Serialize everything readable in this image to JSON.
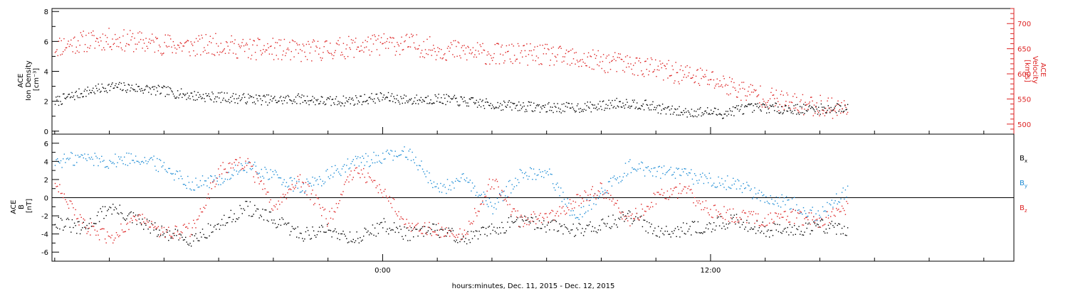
{
  "figure": {
    "xlabel": "hours:minutes, Dec. 11, 2015 - Dec. 12, 2015",
    "x_tick_labels": [
      {
        "t": 0,
        "label": "0:00"
      },
      {
        "t": 12,
        "label": "12:00"
      }
    ],
    "x_range_hours": [
      -12.1,
      23.1
    ],
    "x_minor_step_hours": 2,
    "data_end_hours": 17
  },
  "chart_data": [
    {
      "type": "scatter",
      "name": "panel-top",
      "left_axis": {
        "title_lines": [
          "ACE",
          "Ion Density",
          "[cm⁻³]"
        ],
        "ylim": [
          -0.2,
          8.2
        ],
        "ticks": [
          0,
          2,
          4,
          6,
          8
        ],
        "color": "#000000"
      },
      "right_axis": {
        "title_lines": [
          "ACE",
          "Velocity",
          "[km/s]"
        ],
        "ylim": [
          480,
          730
        ],
        "ticks": [
          500,
          550,
          600,
          650,
          700
        ],
        "color": "#dd2222"
      },
      "series": [
        {
          "axis": "left",
          "color": "#000000",
          "points": [
            [
              -12,
              2.0
            ],
            [
              -11,
              2.6
            ],
            [
              -10,
              3.0
            ],
            [
              -9,
              2.9
            ],
            [
              -8,
              2.7
            ],
            [
              -7,
              2.4
            ],
            [
              -6,
              2.3
            ],
            [
              -5,
              2.2
            ],
            [
              -4,
              2.1
            ],
            [
              -3,
              2.2
            ],
            [
              -2,
              2.0
            ],
            [
              -1,
              2.1
            ],
            [
              0,
              2.3
            ],
            [
              1,
              2.1
            ],
            [
              2,
              2.2
            ],
            [
              3,
              2.0
            ],
            [
              4,
              1.8
            ],
            [
              5,
              1.7
            ],
            [
              6,
              1.6
            ],
            [
              7,
              1.6
            ],
            [
              8,
              1.7
            ],
            [
              8.5,
              1.9
            ],
            [
              9,
              1.9
            ],
            [
              9.5,
              1.8
            ],
            [
              10,
              1.6
            ],
            [
              10.5,
              1.4
            ],
            [
              11,
              1.3
            ],
            [
              12,
              1.3
            ],
            [
              12.5,
              1.2
            ],
            [
              13,
              1.5
            ],
            [
              14,
              1.6
            ],
            [
              15,
              1.5
            ],
            [
              16,
              1.5
            ],
            [
              17,
              1.6
            ]
          ]
        },
        {
          "axis": "right",
          "color": "#dd2222",
          "points": [
            [
              -12,
              655
            ],
            [
              -11,
              665
            ],
            [
              -10,
              670
            ],
            [
              -9,
              665
            ],
            [
              -8,
              660
            ],
            [
              -7,
              655
            ],
            [
              -6,
              660
            ],
            [
              -5,
              650
            ],
            [
              -4,
              650
            ],
            [
              -3,
              645
            ],
            [
              -2,
              650
            ],
            [
              -1,
              655
            ],
            [
              0,
              660
            ],
            [
              1,
              660
            ],
            [
              2,
              650
            ],
            [
              3,
              645
            ],
            [
              4,
              640
            ],
            [
              5,
              640
            ],
            [
              6,
              638
            ],
            [
              7,
              630
            ],
            [
              8,
              625
            ],
            [
              9,
              620
            ],
            [
              10,
              610
            ],
            [
              11,
              600
            ],
            [
              12,
              590
            ],
            [
              13,
              570
            ],
            [
              14,
              555
            ],
            [
              15,
              540
            ],
            [
              16,
              538
            ],
            [
              17,
              530
            ]
          ]
        }
      ]
    },
    {
      "type": "scatter",
      "name": "panel-bottom",
      "left_axis": {
        "title_lines": [
          "ACE",
          "B",
          "[nT]"
        ],
        "ylim": [
          -7,
          7
        ],
        "ticks": [
          -6,
          -4,
          -2,
          0,
          2,
          4,
          6
        ],
        "color": "#000000"
      },
      "zero_line": true,
      "legend": [
        {
          "label": "B",
          "sub": "x",
          "color": "#000000"
        },
        {
          "label": "B",
          "sub": "y",
          "color": "#1a8ad4"
        },
        {
          "label": "B",
          "sub": "z",
          "color": "#dd2222"
        }
      ],
      "series": [
        {
          "name": "Bx",
          "color": "#000000",
          "points": [
            [
              -12,
              -2.5
            ],
            [
              -11,
              -3.5
            ],
            [
              -10,
              -1.0
            ],
            [
              -9,
              -2.5
            ],
            [
              -8,
              -4.0
            ],
            [
              -7,
              -4.5
            ],
            [
              -6,
              -3.0
            ],
            [
              -5,
              -1.0
            ],
            [
              -4,
              -2.5
            ],
            [
              -3,
              -4.0
            ],
            [
              -2,
              -3.5
            ],
            [
              -1,
              -4.5
            ],
            [
              0,
              -3.0
            ],
            [
              1,
              -4.0
            ],
            [
              2,
              -3.5
            ],
            [
              3,
              -4.5
            ],
            [
              4,
              -3.5
            ],
            [
              5,
              -2.5
            ],
            [
              6,
              -3.0
            ],
            [
              7,
              -3.5
            ],
            [
              8,
              -3.0
            ],
            [
              9,
              -2.0
            ],
            [
              10,
              -3.5
            ],
            [
              11,
              -3.5
            ],
            [
              12,
              -3.0
            ],
            [
              13,
              -2.5
            ],
            [
              14,
              -3.5
            ],
            [
              15,
              -3.5
            ],
            [
              16,
              -3.0
            ],
            [
              17,
              -3.5
            ]
          ]
        },
        {
          "name": "By",
          "color": "#1a8ad4",
          "points": [
            [
              -12,
              4.0
            ],
            [
              -11,
              4.5
            ],
            [
              -10,
              4.0
            ],
            [
              -9,
              4.5
            ],
            [
              -8,
              3.5
            ],
            [
              -7,
              1.5
            ],
            [
              -6,
              2.0
            ],
            [
              -5,
              3.5
            ],
            [
              -4,
              2.5
            ],
            [
              -3,
              1.0
            ],
            [
              -2,
              2.5
            ],
            [
              -1,
              4.0
            ],
            [
              0,
              4.5
            ],
            [
              1,
              5.0
            ],
            [
              2,
              1.0
            ],
            [
              3,
              2.0
            ],
            [
              4,
              -1.0
            ],
            [
              5,
              2.5
            ],
            [
              6,
              3.0
            ],
            [
              7,
              -2.0
            ],
            [
              8,
              0.5
            ],
            [
              9,
              3.5
            ],
            [
              10,
              3.0
            ],
            [
              11,
              2.5
            ],
            [
              12,
              2.0
            ],
            [
              13,
              1.5
            ],
            [
              14,
              0.0
            ],
            [
              15,
              -0.5
            ],
            [
              16,
              -2.0
            ],
            [
              17,
              1.0
            ]
          ]
        },
        {
          "name": "Bz",
          "color": "#dd2222",
          "points": [
            [
              -12,
              2.0
            ],
            [
              -11,
              -3.0
            ],
            [
              -10,
              -4.5
            ],
            [
              -9,
              -2.0
            ],
            [
              -8,
              -4.0
            ],
            [
              -7,
              -3.5
            ],
            [
              -6,
              3.0
            ],
            [
              -5,
              4.0
            ],
            [
              -4,
              -1.0
            ],
            [
              -3,
              2.0
            ],
            [
              -2,
              -2.5
            ],
            [
              -1,
              3.5
            ],
            [
              0,
              0.5
            ],
            [
              1,
              -3.0
            ],
            [
              2,
              -3.5
            ],
            [
              3,
              -4.0
            ],
            [
              4,
              2.0
            ],
            [
              5,
              -2.5
            ],
            [
              6,
              -2.0
            ],
            [
              7,
              -0.5
            ],
            [
              8,
              1.0
            ],
            [
              9,
              -2.5
            ],
            [
              10,
              0.0
            ],
            [
              11,
              1.0
            ],
            [
              12,
              -1.5
            ],
            [
              13,
              -2.0
            ],
            [
              14,
              -2.5
            ],
            [
              15,
              -2.0
            ],
            [
              16,
              -2.5
            ],
            [
              17,
              -1.0
            ]
          ]
        }
      ]
    }
  ]
}
